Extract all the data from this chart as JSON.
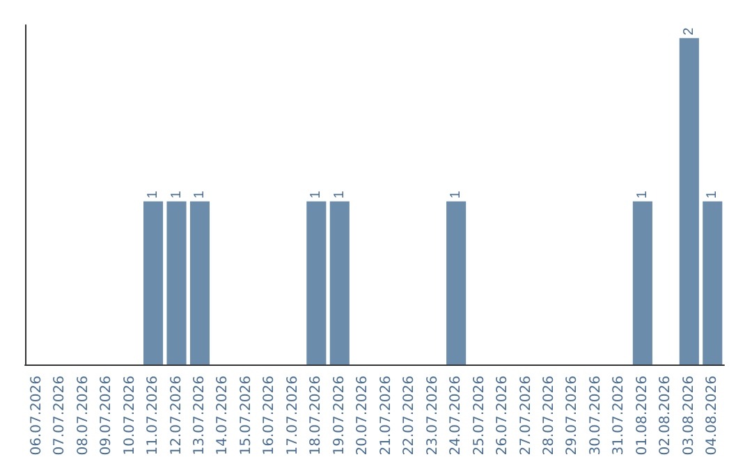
{
  "chart_data": {
    "type": "bar",
    "categories": [
      "06.07.2026",
      "07.07.2026",
      "08.07.2026",
      "09.07.2026",
      "10.07.2026",
      "11.07.2026",
      "12.07.2026",
      "13.07.2026",
      "14.07.2026",
      "15.07.2026",
      "16.07.2026",
      "17.07.2026",
      "18.07.2026",
      "19.07.2026",
      "20.07.2026",
      "21.07.2026",
      "22.07.2026",
      "23.07.2026",
      "24.07.2026",
      "25.07.2026",
      "26.07.2026",
      "27.07.2026",
      "28.07.2026",
      "29.07.2026",
      "30.07.2026",
      "31.07.2026",
      "01.08.2026",
      "02.08.2026",
      "03.08.2026",
      "04.08.2026"
    ],
    "values": [
      0,
      0,
      0,
      0,
      0,
      1,
      1,
      1,
      0,
      0,
      0,
      0,
      1,
      1,
      0,
      0,
      0,
      0,
      1,
      0,
      0,
      0,
      0,
      0,
      0,
      0,
      1,
      0,
      2,
      1
    ],
    "value_labels": [
      null,
      null,
      null,
      null,
      null,
      "1",
      "1",
      "1",
      null,
      null,
      null,
      null,
      "1",
      "1",
      null,
      null,
      null,
      null,
      "1",
      null,
      null,
      null,
      null,
      null,
      null,
      null,
      "1",
      null,
      "2",
      "1"
    ],
    "color": "#6b8cab",
    "tick_labels": "x"
  }
}
